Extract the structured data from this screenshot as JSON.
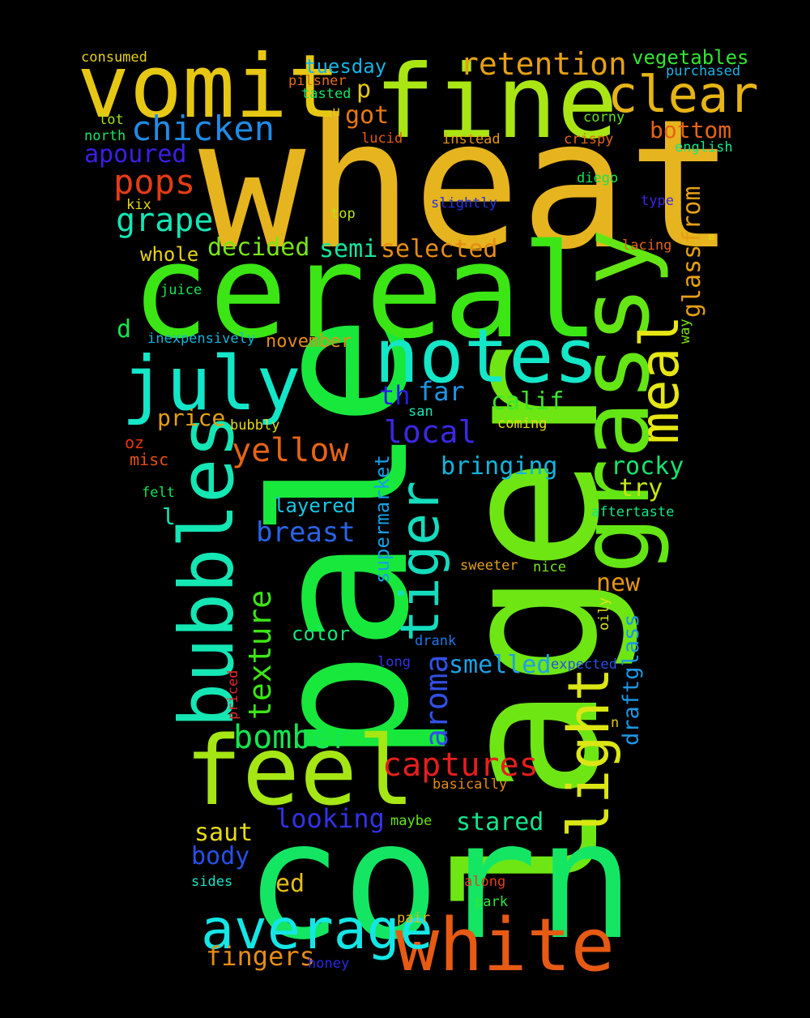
{
  "words": [
    {
      "text": "wheat",
      "color": "#e6b41e",
      "vertical": false
    },
    {
      "text": "pale",
      "color": "#18e83c",
      "vertical": true
    },
    {
      "text": "lager",
      "color": "#6ee614",
      "vertical": true
    },
    {
      "text": "corn",
      "color": "#14e664",
      "vertical": false
    },
    {
      "text": "cereal",
      "color": "#3ce614",
      "vertical": false
    },
    {
      "text": "fine",
      "color": "#aae614",
      "vertical": false
    },
    {
      "text": "vomit",
      "color": "#e6c814",
      "vertical": false
    },
    {
      "text": "grassy",
      "color": "#64e614",
      "vertical": true
    },
    {
      "text": "feel",
      "color": "#a5e614",
      "vertical": false
    },
    {
      "text": "bubbles",
      "color": "#14e6b4",
      "vertical": true
    },
    {
      "text": "notes",
      "color": "#14e6c8",
      "vertical": false
    },
    {
      "text": "july",
      "color": "#14e6c8",
      "vertical": false
    },
    {
      "text": "white",
      "color": "#e65a14",
      "vertical": false
    },
    {
      "text": "average",
      "color": "#14e6e6",
      "vertical": false
    },
    {
      "text": "clear",
      "color": "#e6b414",
      "vertical": false
    },
    {
      "text": "meal",
      "color": "#e6e614",
      "vertical": true
    },
    {
      "text": "light",
      "color": "#dce614",
      "vertical": true
    },
    {
      "text": "tiger",
      "color": "#14dcbe",
      "vertical": true
    },
    {
      "text": "retention",
      "color": "#e6a014",
      "vertical": false
    },
    {
      "text": "chicken",
      "color": "#1e8ce6",
      "vertical": false
    },
    {
      "text": "captures",
      "color": "#e61e1e",
      "vertical": false
    },
    {
      "text": "yellow",
      "color": "#e66414",
      "vertical": false
    },
    {
      "text": "bomber",
      "color": "#14e650",
      "vertical": false
    },
    {
      "text": "pops",
      "color": "#e63c14",
      "vertical": false
    },
    {
      "text": "grape",
      "color": "#14e6b4",
      "vertical": false
    },
    {
      "text": "texture",
      "color": "#3ce614",
      "vertical": true
    },
    {
      "text": "aroma",
      "color": "#3250e6",
      "vertical": true
    },
    {
      "text": "breast",
      "color": "#2864e6",
      "vertical": false
    },
    {
      "text": "local",
      "color": "#3c28e6",
      "vertical": false
    },
    {
      "text": "looking",
      "color": "#3232e6",
      "vertical": false
    },
    {
      "text": "fingers",
      "color": "#e68c14",
      "vertical": false
    },
    {
      "text": "vegetables",
      "color": "#32e632",
      "vertical": false
    },
    {
      "text": "bottom",
      "color": "#e66414",
      "vertical": false
    },
    {
      "text": "apoured",
      "color": "#3c1ee6",
      "vertical": false
    },
    {
      "text": "decided",
      "color": "#78e614",
      "vertical": false
    },
    {
      "text": "selected",
      "color": "#e68c14",
      "vertical": false
    },
    {
      "text": "semi",
      "color": "#14e6a0",
      "vertical": false
    },
    {
      "text": "glassfrom",
      "color": "#e6a014",
      "vertical": true
    },
    {
      "text": "far",
      "color": "#1e96e6",
      "vertical": false
    },
    {
      "text": "th",
      "color": "#281ee6",
      "vertical": false
    },
    {
      "text": "calif",
      "color": "#3ce628",
      "vertical": false
    },
    {
      "text": "bringing",
      "color": "#14b4dc",
      "vertical": false
    },
    {
      "text": "rocky",
      "color": "#14e66e",
      "vertical": false
    },
    {
      "text": "try",
      "color": "#c8e614",
      "vertical": false
    },
    {
      "text": "new",
      "color": "#e69614",
      "vertical": false
    },
    {
      "text": "smelled",
      "color": "#1ea0e6",
      "vertical": false
    },
    {
      "text": "saut",
      "color": "#e6dc14",
      "vertical": false
    },
    {
      "text": "body",
      "color": "#2850e6",
      "vertical": false
    },
    {
      "text": "ed",
      "color": "#e6be14",
      "vertical": false
    },
    {
      "text": "stared",
      "color": "#14e68c",
      "vertical": false
    },
    {
      "text": "draftglass",
      "color": "#1e96e6",
      "vertical": true
    },
    {
      "text": "price",
      "color": "#e6a014",
      "vertical": false
    },
    {
      "text": "got",
      "color": "#e67814",
      "vertical": false
    },
    {
      "text": "p",
      "color": "#e6c814",
      "vertical": false
    },
    {
      "text": "tuesday",
      "color": "#14b4e6",
      "vertical": false
    },
    {
      "text": "layered",
      "color": "#14c8e6",
      "vertical": false
    },
    {
      "text": "supermarket",
      "color": "#14a0e6",
      "vertical": true
    },
    {
      "text": "color",
      "color": "#14e678",
      "vertical": false
    },
    {
      "text": "whole",
      "color": "#e6d214",
      "vertical": false
    },
    {
      "text": "d",
      "color": "#14e650",
      "vertical": false
    },
    {
      "text": "november",
      "color": "#e68c14",
      "vertical": false
    },
    {
      "text": "inexpensively",
      "color": "#14b4dc",
      "vertical": false
    },
    {
      "text": "consumed",
      "color": "#e6d214",
      "vertical": false
    },
    {
      "text": "pilsner",
      "color": "#e66e14",
      "vertical": false
    },
    {
      "text": "tasted",
      "color": "#14e664",
      "vertical": false
    },
    {
      "text": "purchased",
      "color": "#1eb4e6",
      "vertical": false
    },
    {
      "text": "lot",
      "color": "#a0e614",
      "vertical": false
    },
    {
      "text": "north",
      "color": "#14e664",
      "vertical": false
    },
    {
      "text": "u",
      "color": "#e6c814",
      "vertical": false
    },
    {
      "text": "lucid",
      "color": "#e65a14",
      "vertical": false
    },
    {
      "text": "instead",
      "color": "#e69614",
      "vertical": false
    },
    {
      "text": "corny",
      "color": "#64e614",
      "vertical": false
    },
    {
      "text": "crispy",
      "color": "#e66414",
      "vertical": false
    },
    {
      "text": "english",
      "color": "#14e68c",
      "vertical": false
    },
    {
      "text": "kix",
      "color": "#e6dc14",
      "vertical": false
    },
    {
      "text": "top",
      "color": "#b4e614",
      "vertical": false
    },
    {
      "text": "slightly",
      "color": "#2832e6",
      "vertical": false
    },
    {
      "text": "diego",
      "color": "#14e650",
      "vertical": false
    },
    {
      "text": "type",
      "color": "#3c28e6",
      "vertical": false
    },
    {
      "text": "lacing",
      "color": "#e66414",
      "vertical": false
    },
    {
      "text": "m",
      "color": "#e6dc14",
      "vertical": true
    },
    {
      "text": "juice",
      "color": "#14e650",
      "vertical": false
    },
    {
      "text": "way",
      "color": "#78e614",
      "vertical": true
    },
    {
      "text": "bubbly",
      "color": "#e6dc14",
      "vertical": false
    },
    {
      "text": "coming",
      "color": "#e6dc14",
      "vertical": false
    },
    {
      "text": "san",
      "color": "#14e6b4",
      "vertical": false
    },
    {
      "text": "oz",
      "color": "#e63214",
      "vertical": false
    },
    {
      "text": "misc",
      "color": "#e65014",
      "vertical": false
    },
    {
      "text": "felt",
      "color": "#14e650",
      "vertical": false
    },
    {
      "text": "l",
      "color": "#14e6b4",
      "vertical": false
    },
    {
      "text": "aftertaste",
      "color": "#14e682",
      "vertical": false
    },
    {
      "text": "sweeter",
      "color": "#e6a014",
      "vertical": false
    },
    {
      "text": "nice",
      "color": "#78e614",
      "vertical": false
    },
    {
      "text": "oily",
      "color": "#dce614",
      "vertical": true
    },
    {
      "text": "drank",
      "color": "#1e78e6",
      "vertical": false
    },
    {
      "text": "long",
      "color": "#3232e6",
      "vertical": false
    },
    {
      "text": "expected",
      "color": "#2850e6",
      "vertical": false
    },
    {
      "text": "priced",
      "color": "#e62828",
      "vertical": true
    },
    {
      "text": "n",
      "color": "#e6c814",
      "vertical": false
    },
    {
      "text": "basically",
      "color": "#e68c14",
      "vertical": false
    },
    {
      "text": "maybe",
      "color": "#64e614",
      "vertical": false
    },
    {
      "text": "sides",
      "color": "#14e6c8",
      "vertical": false
    },
    {
      "text": "along",
      "color": "#e63c14",
      "vertical": false
    },
    {
      "text": "park",
      "color": "#32e632",
      "vertical": false
    },
    {
      "text": "pair",
      "color": "#e6b414",
      "vertical": false
    },
    {
      "text": "honey",
      "color": "#2828e6",
      "vertical": false
    }
  ]
}
